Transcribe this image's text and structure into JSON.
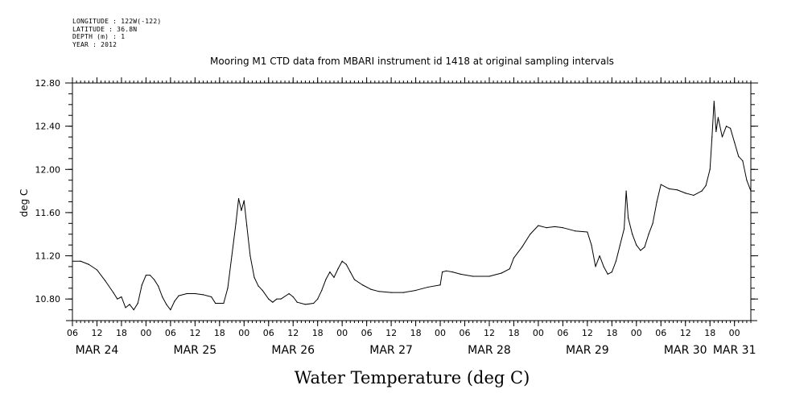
{
  "meta_lines": [
    "LONGITUDE : 122W(-122)",
    "LATITUDE : 36.8N",
    "DEPTH (m) : 1",
    "YEAR : 2012"
  ],
  "chart_data": {
    "type": "line",
    "title": "Mooring M1 CTD data from MBARI instrument id 1418 at original sampling intervals",
    "xlabel": "Water Temperature (deg C)",
    "ylabel": "deg C",
    "ylim": [
      10.6,
      12.8
    ],
    "xlim": [
      "2012-03-24T06:00",
      "2012-03-31T04:00"
    ],
    "y_ticks": [
      "10.80",
      "11.20",
      "11.60",
      "12.00",
      "12.40",
      "12.80"
    ],
    "y_tick_values": [
      10.8,
      11.2,
      11.6,
      12.0,
      12.4,
      12.8
    ],
    "x_hour_ticks": [
      {
        "t": "2012-03-24T06:00",
        "label": "06"
      },
      {
        "t": "2012-03-24T12:00",
        "label": "12"
      },
      {
        "t": "2012-03-24T18:00",
        "label": "18"
      },
      {
        "t": "2012-03-25T00:00",
        "label": "00"
      },
      {
        "t": "2012-03-25T06:00",
        "label": "06"
      },
      {
        "t": "2012-03-25T12:00",
        "label": "12"
      },
      {
        "t": "2012-03-25T18:00",
        "label": "18"
      },
      {
        "t": "2012-03-26T00:00",
        "label": "00"
      },
      {
        "t": "2012-03-26T06:00",
        "label": "06"
      },
      {
        "t": "2012-03-26T12:00",
        "label": "12"
      },
      {
        "t": "2012-03-26T18:00",
        "label": "18"
      },
      {
        "t": "2012-03-27T00:00",
        "label": "00"
      },
      {
        "t": "2012-03-27T06:00",
        "label": "06"
      },
      {
        "t": "2012-03-27T12:00",
        "label": "12"
      },
      {
        "t": "2012-03-27T18:00",
        "label": "18"
      },
      {
        "t": "2012-03-28T00:00",
        "label": "00"
      },
      {
        "t": "2012-03-28T06:00",
        "label": "06"
      },
      {
        "t": "2012-03-28T12:00",
        "label": "12"
      },
      {
        "t": "2012-03-28T18:00",
        "label": "18"
      },
      {
        "t": "2012-03-29T00:00",
        "label": "00"
      },
      {
        "t": "2012-03-29T06:00",
        "label": "06"
      },
      {
        "t": "2012-03-29T12:00",
        "label": "12"
      },
      {
        "t": "2012-03-29T18:00",
        "label": "18"
      },
      {
        "t": "2012-03-30T00:00",
        "label": "00"
      },
      {
        "t": "2012-03-30T06:00",
        "label": "06"
      },
      {
        "t": "2012-03-30T12:00",
        "label": "12"
      },
      {
        "t": "2012-03-30T18:00",
        "label": "18"
      },
      {
        "t": "2012-03-31T00:00",
        "label": "00"
      }
    ],
    "x_day_labels": [
      {
        "t": "2012-03-24T12:00",
        "label": "MAR 24"
      },
      {
        "t": "2012-03-25T12:00",
        "label": "MAR 25"
      },
      {
        "t": "2012-03-26T12:00",
        "label": "MAR 26"
      },
      {
        "t": "2012-03-27T12:00",
        "label": "MAR 27"
      },
      {
        "t": "2012-03-28T12:00",
        "label": "MAR 28"
      },
      {
        "t": "2012-03-29T12:00",
        "label": "MAR 29"
      },
      {
        "t": "2012-03-30T12:00",
        "label": "MAR 30"
      },
      {
        "t": "2012-03-31T00:00",
        "label": "MAR 31"
      }
    ],
    "series": [
      {
        "color": "#000000",
        "points": [
          [
            "2012-03-24T06:00",
            11.15
          ],
          [
            "2012-03-24T08:00",
            11.15
          ],
          [
            "2012-03-24T10:00",
            11.12
          ],
          [
            "2012-03-24T12:00",
            11.07
          ],
          [
            "2012-03-24T14:00",
            10.97
          ],
          [
            "2012-03-24T16:00",
            10.86
          ],
          [
            "2012-03-24T17:00",
            10.8
          ],
          [
            "2012-03-24T18:00",
            10.82
          ],
          [
            "2012-03-24T19:00",
            10.72
          ],
          [
            "2012-03-24T20:00",
            10.75
          ],
          [
            "2012-03-24T21:00",
            10.7
          ],
          [
            "2012-03-24T22:00",
            10.76
          ],
          [
            "2012-03-24T23:00",
            10.93
          ],
          [
            "2012-03-25T00:00",
            11.02
          ],
          [
            "2012-03-25T01:00",
            11.02
          ],
          [
            "2012-03-25T02:00",
            10.98
          ],
          [
            "2012-03-25T03:00",
            10.92
          ],
          [
            "2012-03-25T04:00",
            10.82
          ],
          [
            "2012-03-25T05:00",
            10.75
          ],
          [
            "2012-03-25T06:00",
            10.7
          ],
          [
            "2012-03-25T07:00",
            10.78
          ],
          [
            "2012-03-25T08:00",
            10.83
          ],
          [
            "2012-03-25T10:00",
            10.85
          ],
          [
            "2012-03-25T12:00",
            10.85
          ],
          [
            "2012-03-25T14:00",
            10.84
          ],
          [
            "2012-03-25T16:00",
            10.82
          ],
          [
            "2012-03-25T17:00",
            10.76
          ],
          [
            "2012-03-25T19:00",
            10.76
          ],
          [
            "2012-03-25T20:00",
            10.9
          ],
          [
            "2012-03-25T21:00",
            11.2
          ],
          [
            "2012-03-25T22:00",
            11.5
          ],
          [
            "2012-03-25T22:40",
            11.73
          ],
          [
            "2012-03-25T23:20",
            11.62
          ],
          [
            "2012-03-26T00:00",
            11.71
          ],
          [
            "2012-03-26T00:40",
            11.48
          ],
          [
            "2012-03-26T01:30",
            11.2
          ],
          [
            "2012-03-26T02:30",
            11.0
          ],
          [
            "2012-03-26T03:30",
            10.92
          ],
          [
            "2012-03-26T04:30",
            10.88
          ],
          [
            "2012-03-26T06:00",
            10.8
          ],
          [
            "2012-03-26T07:00",
            10.77
          ],
          [
            "2012-03-26T08:00",
            10.8
          ],
          [
            "2012-03-26T09:00",
            10.8
          ],
          [
            "2012-03-26T11:00",
            10.85
          ],
          [
            "2012-03-26T12:00",
            10.82
          ],
          [
            "2012-03-26T13:00",
            10.77
          ],
          [
            "2012-03-26T15:00",
            10.75
          ],
          [
            "2012-03-26T17:00",
            10.76
          ],
          [
            "2012-03-26T18:00",
            10.8
          ],
          [
            "2012-03-26T19:00",
            10.88
          ],
          [
            "2012-03-26T20:00",
            10.98
          ],
          [
            "2012-03-26T21:00",
            11.05
          ],
          [
            "2012-03-26T22:00",
            11.0
          ],
          [
            "2012-03-26T23:00",
            11.08
          ],
          [
            "2012-03-27T00:00",
            11.15
          ],
          [
            "2012-03-27T01:00",
            11.12
          ],
          [
            "2012-03-27T02:00",
            11.05
          ],
          [
            "2012-03-27T03:00",
            10.98
          ],
          [
            "2012-03-27T05:00",
            10.93
          ],
          [
            "2012-03-27T07:00",
            10.89
          ],
          [
            "2012-03-27T09:00",
            10.87
          ],
          [
            "2012-03-27T12:00",
            10.86
          ],
          [
            "2012-03-27T15:00",
            10.86
          ],
          [
            "2012-03-27T18:00",
            10.88
          ],
          [
            "2012-03-27T21:00",
            10.91
          ],
          [
            "2012-03-28T00:00",
            10.93
          ],
          [
            "2012-03-28T00:30",
            11.05
          ],
          [
            "2012-03-28T01:30",
            11.06
          ],
          [
            "2012-03-28T03:00",
            11.05
          ],
          [
            "2012-03-28T05:00",
            11.03
          ],
          [
            "2012-03-28T08:00",
            11.01
          ],
          [
            "2012-03-28T12:00",
            11.01
          ],
          [
            "2012-03-28T15:00",
            11.04
          ],
          [
            "2012-03-28T17:00",
            11.08
          ],
          [
            "2012-03-28T18:00",
            11.18
          ],
          [
            "2012-03-28T20:00",
            11.28
          ],
          [
            "2012-03-28T22:00",
            11.4
          ],
          [
            "2012-03-29T00:00",
            11.48
          ],
          [
            "2012-03-29T02:00",
            11.46
          ],
          [
            "2012-03-29T04:00",
            11.47
          ],
          [
            "2012-03-29T06:00",
            11.46
          ],
          [
            "2012-03-29T09:00",
            11.43
          ],
          [
            "2012-03-29T12:00",
            11.42
          ],
          [
            "2012-03-29T13:00",
            11.3
          ],
          [
            "2012-03-29T14:00",
            11.1
          ],
          [
            "2012-03-29T15:00",
            11.2
          ],
          [
            "2012-03-29T16:00",
            11.1
          ],
          [
            "2012-03-29T17:00",
            11.03
          ],
          [
            "2012-03-29T18:00",
            11.05
          ],
          [
            "2012-03-29T19:00",
            11.15
          ],
          [
            "2012-03-29T20:00",
            11.3
          ],
          [
            "2012-03-29T21:00",
            11.45
          ],
          [
            "2012-03-29T21:30",
            11.8
          ],
          [
            "2012-03-29T22:00",
            11.55
          ],
          [
            "2012-03-29T23:00",
            11.4
          ],
          [
            "2012-03-30T00:00",
            11.3
          ],
          [
            "2012-03-30T01:00",
            11.25
          ],
          [
            "2012-03-30T02:00",
            11.28
          ],
          [
            "2012-03-30T03:00",
            11.4
          ],
          [
            "2012-03-30T04:00",
            11.5
          ],
          [
            "2012-03-30T05:00",
            11.7
          ],
          [
            "2012-03-30T06:00",
            11.86
          ],
          [
            "2012-03-30T08:00",
            11.82
          ],
          [
            "2012-03-30T10:00",
            11.81
          ],
          [
            "2012-03-30T12:00",
            11.78
          ],
          [
            "2012-03-30T14:00",
            11.76
          ],
          [
            "2012-03-30T16:00",
            11.8
          ],
          [
            "2012-03-30T17:00",
            11.85
          ],
          [
            "2012-03-30T18:00",
            12.0
          ],
          [
            "2012-03-30T18:30",
            12.3
          ],
          [
            "2012-03-30T19:00",
            12.63
          ],
          [
            "2012-03-30T19:30",
            12.35
          ],
          [
            "2012-03-30T20:00",
            12.48
          ],
          [
            "2012-03-30T21:00",
            12.3
          ],
          [
            "2012-03-30T22:00",
            12.4
          ],
          [
            "2012-03-30T23:00",
            12.38
          ],
          [
            "2012-03-31T00:00",
            12.25
          ],
          [
            "2012-03-31T01:00",
            12.12
          ],
          [
            "2012-03-31T02:00",
            12.08
          ],
          [
            "2012-03-31T03:00",
            11.9
          ],
          [
            "2012-03-31T04:00",
            11.8
          ]
        ]
      }
    ],
    "grid": false,
    "legend": "none"
  }
}
